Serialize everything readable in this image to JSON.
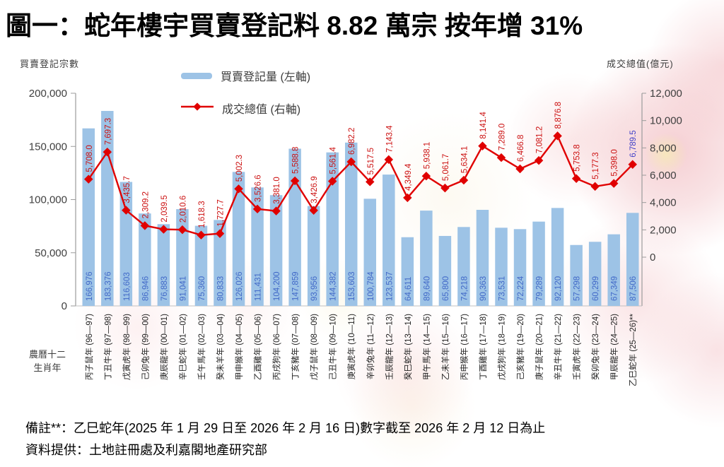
{
  "title": "圖一：蛇年樓宇買賣登記料 8.82 萬宗  按年增 31%",
  "left_axis_label": "買賣登記宗數",
  "right_axis_label": "成交總值(億元)",
  "legend": {
    "bars": "買賣登記量 (左軸)",
    "line": "成交總值 (右軸)"
  },
  "x_axis_note": [
    "農曆十二",
    "生肖年"
  ],
  "notes": [
    "備註**：乙巳蛇年(2025 年 1 月 29 日至 2026 年 2 月 16 日)數字截至 2026 年 2 月 12 日為止",
    "資料提供：土地註冊處及利嘉閣地產研究部"
  ],
  "colors": {
    "bar": "#9DC3E6",
    "bar_label": "#4169C8",
    "line": "#E00000",
    "line_label": "#CC1111",
    "forecast_label": "#4141C8",
    "axis": "#9B9B9B",
    "tick_text": "#404040"
  },
  "chart_data": {
    "type": "bar",
    "title": "圖一：蛇年樓宇買賣登記料 8.82 萬宗  按年增 31%",
    "xlabel": "農曆十二生肖年",
    "ylabel_left": "買賣登記宗數",
    "ylabel_right": "成交總值(億元)",
    "legend_position": "top",
    "grid": false,
    "categories": [
      "丙子鼠年 (96—97)",
      "丁丑牛年 (97—98)",
      "戊寅虎年 (98—99)",
      "己卯兔年 (99—00)",
      "庚辰龍年 (00—01)",
      "辛巳蛇年 (01—02)",
      "壬午馬年 (02—03)",
      "癸未羊年 (03—04)",
      "甲申猴年 (04—05)",
      "乙酉雞年 (05—06)",
      "丙戌狗年 (06—07)",
      "丁亥豬年 (07—08)",
      "戊子鼠年 (08—09)",
      "己丑牛年 (09—10)",
      "庚寅虎年 (10—11)",
      "辛卯兔年 (11—12)",
      "壬辰龍年 (12—13)",
      "癸巳蛇年 (13—14)",
      "甲午馬年 (14—15)",
      "乙未羊年 (15—16)",
      "丙申猴年 (16—17)",
      "丁酉雞年 (17—18)",
      "戊戌狗年 (18—19)",
      "己亥豬年 (19—20)",
      "庚子鼠年 (20—21)",
      "辛丑牛年 (21—22)",
      "壬寅虎年 (22—23)",
      "癸卯兔年 (23—24)",
      "甲辰龍年 (24—25)",
      "乙巳蛇年 (25—26)**"
    ],
    "series": [
      {
        "name": "買賣登記量 (左軸)",
        "type": "bar",
        "axis": "left",
        "values": [
          166976,
          183376,
          116603,
          86946,
          76883,
          91041,
          75360,
          80833,
          126026,
          111431,
          104200,
          147859,
          93956,
          144382,
          153603,
          100784,
          123537,
          64611,
          89640,
          65800,
          74218,
          90363,
          73531,
          72224,
          79289,
          92120,
          57298,
          60299,
          67349,
          87506
        ]
      },
      {
        "name": "成交總值 (右軸)",
        "type": "line",
        "axis": "right",
        "values": [
          5708.0,
          7697.3,
          3435.7,
          2309.2,
          2039.5,
          2010.6,
          1618.3,
          1727.7,
          5002.3,
          3526.6,
          3381.0,
          5588.8,
          3426.9,
          5561.4,
          6982.2,
          5517.5,
          7143.4,
          4349.4,
          5938.1,
          5061.7,
          5634.1,
          8141.4,
          7289.0,
          6466.8,
          7081.2,
          8876.8,
          5753.8,
          5177.3,
          5398.0,
          6789.5
        ]
      }
    ],
    "left_axis": {
      "min": 0,
      "max": 200000,
      "ticks": [
        "0",
        "50,000",
        "100,000",
        "150,000",
        "200,000"
      ]
    },
    "right_axis": {
      "min": 0,
      "max": 12000,
      "ticks": [
        "0",
        "2,000",
        "4,000",
        "6,000",
        "8,000",
        "10,000",
        "12,000"
      ]
    }
  }
}
